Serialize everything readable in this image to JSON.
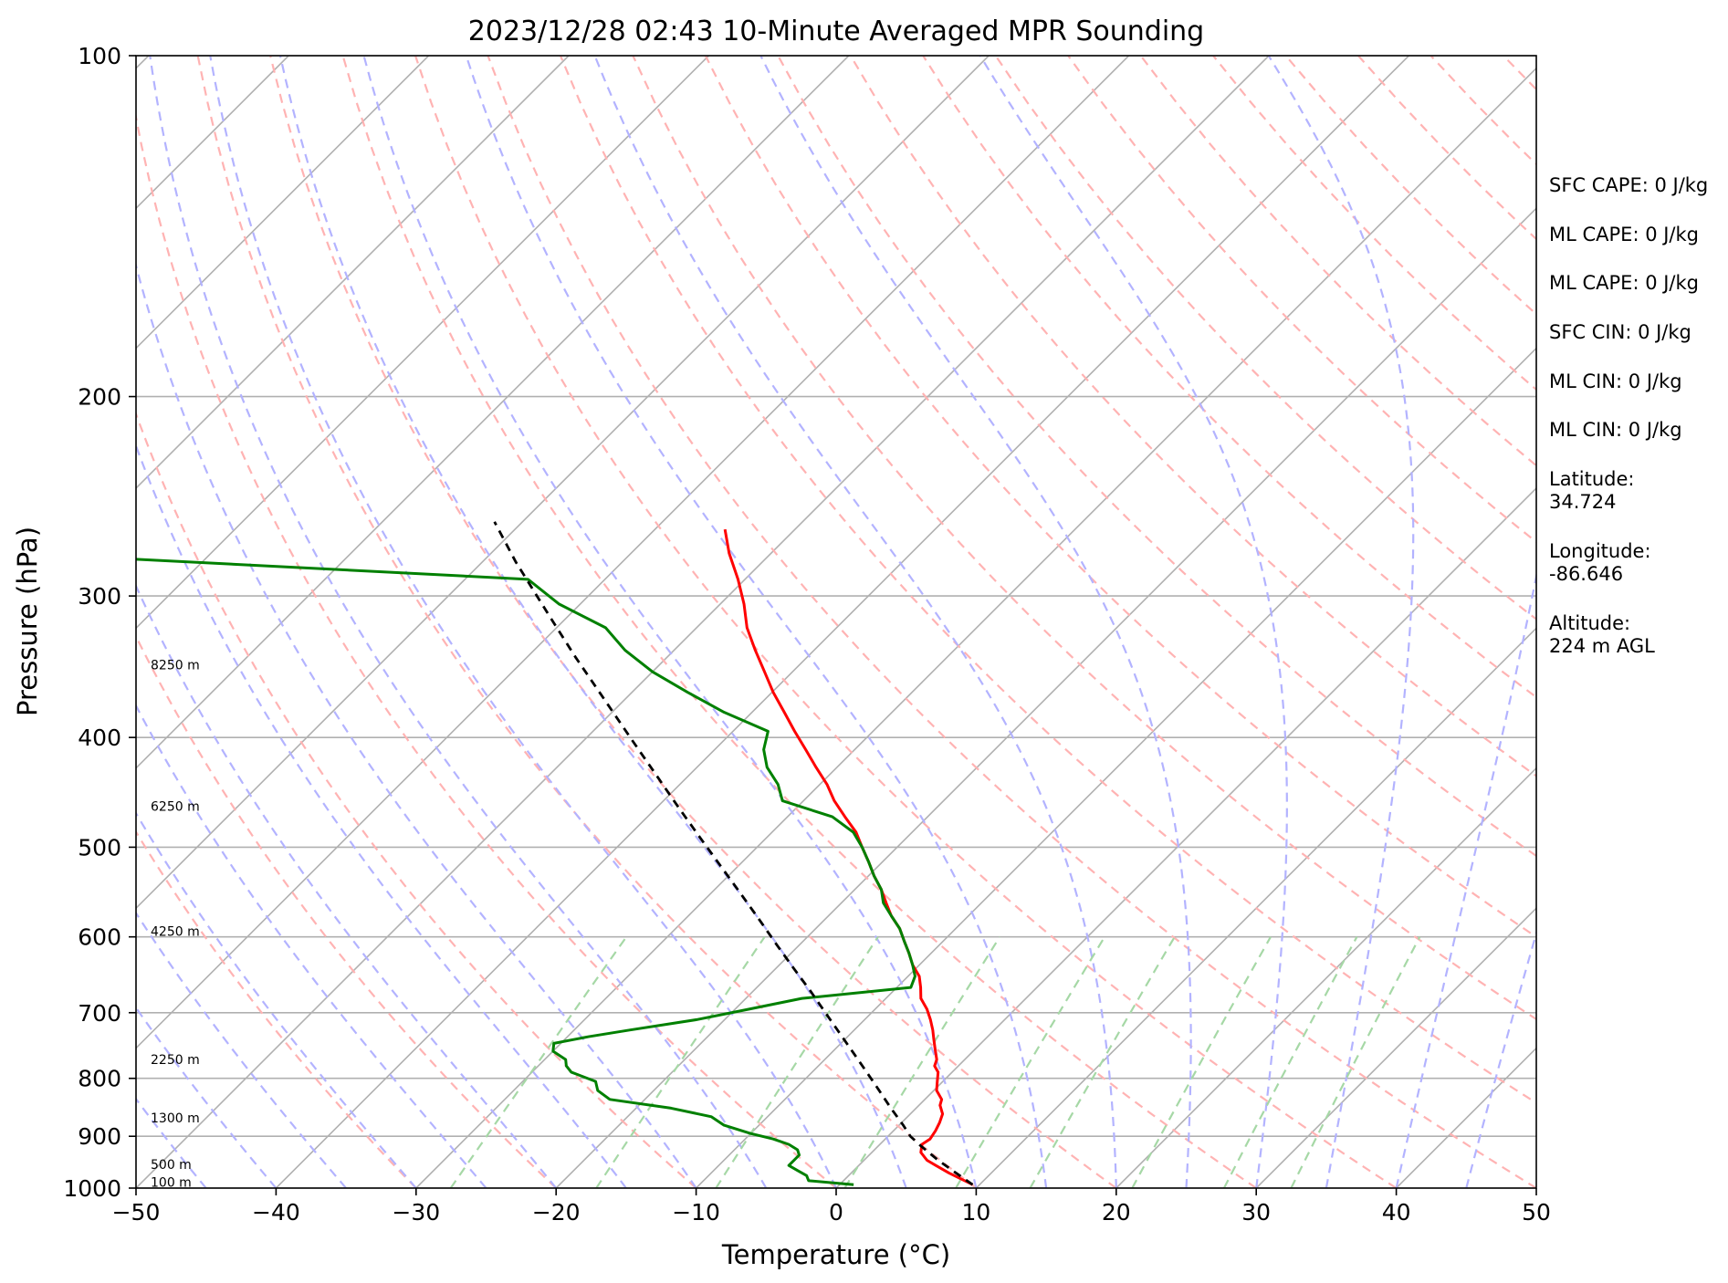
{
  "chart_data": {
    "type": "line",
    "title": "2023/12/28 02:43 10-Minute Averaged MPR Sounding",
    "xlabel": "Temperature (°C)",
    "ylabel": "Pressure (hPa)",
    "xlim": [
      -50,
      50
    ],
    "ylim": [
      1000,
      100
    ],
    "y_scale": "log",
    "skew_t": true,
    "grid": true,
    "x_ticks": [
      "−50",
      "−40",
      "−30",
      "−20",
      "−10",
      "0",
      "10",
      "20",
      "30",
      "40",
      "50"
    ],
    "x_tick_values": [
      -50,
      -40,
      -30,
      -20,
      -10,
      0,
      10,
      20,
      30,
      40,
      50
    ],
    "y_ticks": [
      "100",
      "200",
      "300",
      "400",
      "500",
      "600",
      "700",
      "800",
      "900",
      "1000"
    ],
    "y_tick_values": [
      100,
      200,
      300,
      400,
      500,
      600,
      700,
      800,
      900,
      1000
    ],
    "height_labels": [
      {
        "text": "100 m",
        "pressure": 988
      },
      {
        "text": "500 m",
        "pressure": 953
      },
      {
        "text": "1300 m",
        "pressure": 867
      },
      {
        "text": "2250 m",
        "pressure": 770
      },
      {
        "text": "4250 m",
        "pressure": 593
      },
      {
        "text": "6250 m",
        "pressure": 460
      },
      {
        "text": "8250 m",
        "pressure": 345
      }
    ],
    "series": [
      {
        "color": "#ff0000",
        "pressure": [
          993,
          970,
          955,
          945,
          930,
          915,
          905,
          890,
          875,
          860,
          845,
          835,
          820,
          805,
          790,
          780,
          770,
          755,
          740,
          725,
          710,
          695,
          680,
          665,
          650,
          635,
          620,
          605,
          590,
          575,
          560,
          545,
          530,
          515,
          500,
          485,
          470,
          455,
          440,
          425,
          410,
          395,
          380,
          365,
          350,
          335,
          320,
          305,
          290,
          275,
          262
        ],
        "temperature": [
          9.5,
          7.0,
          5.5,
          4.5,
          3.5,
          3.0,
          3.2,
          3.0,
          2.7,
          2.3,
          1.5,
          1.2,
          0.2,
          -0.4,
          -1.0,
          -1.7,
          -2.0,
          -2.8,
          -3.6,
          -4.4,
          -5.3,
          -6.3,
          -7.5,
          -8.3,
          -9.2,
          -10.5,
          -11.6,
          -12.8,
          -14.0,
          -15.5,
          -16.8,
          -18.1,
          -19.6,
          -21.0,
          -22.5,
          -24.0,
          -25.9,
          -27.8,
          -29.5,
          -31.5,
          -33.5,
          -35.6,
          -37.7,
          -39.9,
          -42.0,
          -44.2,
          -46.4,
          -48.3,
          -50.5,
          -53.0,
          -55.0
        ]
      },
      {
        "color": "#008000",
        "pressure": [
          993,
          985,
          975,
          965,
          955,
          945,
          935,
          925,
          915,
          905,
          895,
          880,
          865,
          850,
          835,
          820,
          805,
          790,
          780,
          770,
          757,
          745,
          735,
          725,
          710,
          695,
          680,
          665,
          650,
          635,
          620,
          605,
          590,
          575,
          560,
          545,
          530,
          515,
          500,
          485,
          470,
          455,
          440,
          425,
          410,
          395,
          380,
          365,
          350,
          335,
          320,
          305,
          290,
          278
        ],
        "dewpoint": [
          1.0,
          -2.5,
          -3.0,
          -4.0,
          -5.0,
          -5.0,
          -5.0,
          -5.5,
          -6.5,
          -8.0,
          -10.0,
          -12.5,
          -14.0,
          -17.5,
          -22.5,
          -24.0,
          -24.8,
          -27.2,
          -28.0,
          -28.5,
          -30.0,
          -30.5,
          -28.5,
          -26.0,
          -22.0,
          -19.0,
          -16.0,
          -9.0,
          -9.5,
          -10.5,
          -11.6,
          -12.8,
          -14.0,
          -15.5,
          -17.0,
          -18.1,
          -19.6,
          -21.0,
          -22.5,
          -24.2,
          -26.8,
          -31.5,
          -33.0,
          -35.0,
          -36.5,
          -37.5,
          -42.0,
          -46.0,
          -50.0,
          -53.5,
          -56.5,
          -61.5,
          -65.5,
          -96.0
        ]
      },
      {
        "color": "#000000",
        "dashed": true,
        "pressure": [
          993,
          970,
          945,
          915,
          900,
          880,
          850,
          820,
          790,
          760,
          730,
          700,
          670,
          640,
          610,
          580,
          550,
          520,
          490,
          460,
          430,
          400,
          370,
          340,
          310,
          280,
          258
        ],
        "temperature": [
          9.5,
          7.5,
          5.3,
          2.8,
          1.6,
          0.3,
          -1.8,
          -3.9,
          -6.1,
          -8.4,
          -10.8,
          -13.3,
          -15.9,
          -18.7,
          -21.6,
          -24.6,
          -27.8,
          -31.2,
          -34.8,
          -38.6,
          -42.6,
          -46.9,
          -51.5,
          -56.5,
          -61.8,
          -67.6,
          -72.0
        ]
      }
    ],
    "stats": [
      "SFC CAPE: 0 J/kg",
      "ML CAPE: 0 J/kg",
      "ML CAPE: 0 J/kg",
      "SFC CIN: 0 J/kg",
      "ML CIN: 0 J/kg",
      "ML CIN: 0 J/kg"
    ],
    "location": {
      "latitude_label": "Latitude:",
      "latitude": "34.724",
      "longitude_label": "Longitude:",
      "longitude": "-86.646",
      "altitude_label": "Altitude:",
      "altitude": "224 m AGL"
    },
    "colors": {
      "isotherms": "#b0b0b0",
      "dry_adiabats": "#ffb3b3",
      "moist_adiabats": "#b3b3ff",
      "mixing_ratio": "#a6d8a6",
      "pressure_grid": "#b0b0b0"
    }
  }
}
